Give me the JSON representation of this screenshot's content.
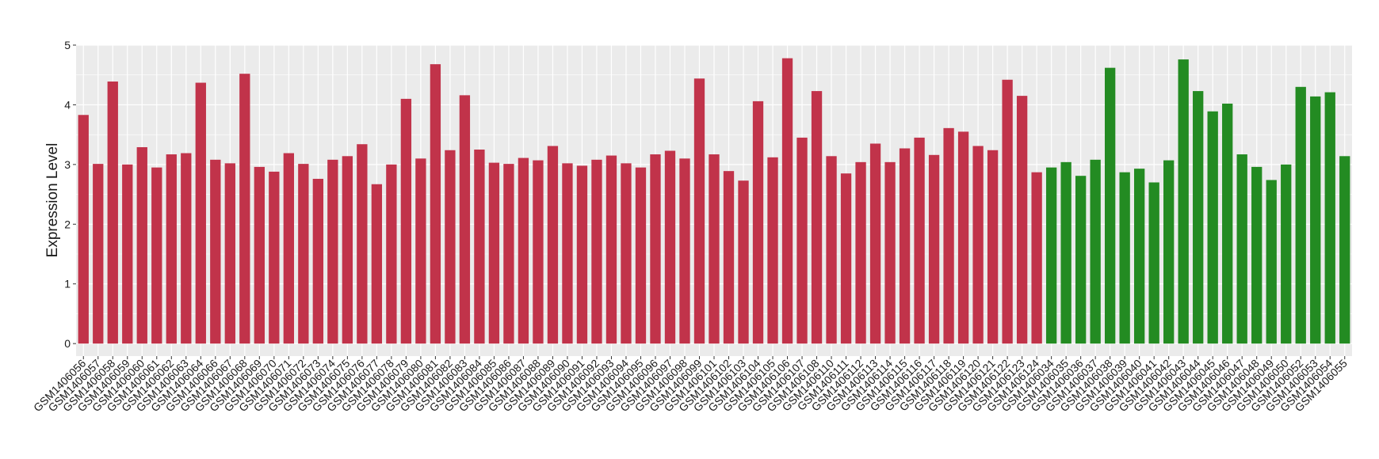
{
  "chart_data": {
    "type": "bar",
    "y_label": "Expression Level",
    "categories": [
      "GSM1406056",
      "GSM1406057",
      "GSM1406058",
      "GSM1406059",
      "GSM1406060",
      "GSM1406061",
      "GSM1406062",
      "GSM1406063",
      "GSM1406064",
      "GSM1406066",
      "GSM1406067",
      "GSM1406068",
      "GSM1406069",
      "GSM1406070",
      "GSM1406071",
      "GSM1406072",
      "GSM1406073",
      "GSM1406074",
      "GSM1406075",
      "GSM1406076",
      "GSM1406077",
      "GSM1406078",
      "GSM1406079",
      "GSM1406080",
      "GSM1406081",
      "GSM1406082",
      "GSM1406083",
      "GSM1406084",
      "GSM1406085",
      "GSM1406086",
      "GSM1406087",
      "GSM1406088",
      "GSM1406089",
      "GSM1406090",
      "GSM1406091",
      "GSM1406092",
      "GSM1406093",
      "GSM1406094",
      "GSM1406095",
      "GSM1406096",
      "GSM1406097",
      "GSM1406098",
      "GSM1406099",
      "GSM1406101",
      "GSM1406102",
      "GSM1406103",
      "GSM1406104",
      "GSM1406105",
      "GSM1406106",
      "GSM1406107",
      "GSM1406108",
      "GSM1406110",
      "GSM1406111",
      "GSM1406112",
      "GSM1406113",
      "GSM1406114",
      "GSM1406115",
      "GSM1406116",
      "GSM1406117",
      "GSM1406118",
      "GSM1406119",
      "GSM1406120",
      "GSM1406121",
      "GSM1406122",
      "GSM1406123",
      "GSM1406124",
      "GSM1406034",
      "GSM1406035",
      "GSM1406036",
      "GSM1406037",
      "GSM1406038",
      "GSM1406039",
      "GSM1406040",
      "GSM1406041",
      "GSM1406042",
      "GSM1406043",
      "GSM1406044",
      "GSM1406045",
      "GSM1406046",
      "GSM1406047",
      "GSM1406048",
      "GSM1406049",
      "GSM1406050",
      "GSM1406052",
      "GSM1406053",
      "GSM1406054",
      "GSM1406055"
    ],
    "values": [
      3.83,
      3.01,
      4.39,
      3.0,
      3.29,
      2.95,
      3.17,
      3.19,
      4.37,
      3.08,
      3.02,
      4.52,
      2.96,
      2.88,
      3.19,
      3.01,
      2.76,
      3.08,
      3.14,
      3.34,
      2.67,
      3.0,
      4.1,
      3.1,
      4.68,
      3.24,
      4.16,
      3.25,
      3.03,
      3.01,
      3.11,
      3.07,
      3.31,
      3.02,
      2.98,
      3.08,
      3.15,
      3.02,
      2.95,
      3.17,
      3.23,
      3.1,
      4.44,
      3.17,
      2.89,
      2.73,
      4.06,
      3.12,
      4.78,
      3.45,
      4.23,
      3.14,
      2.85,
      3.04,
      3.35,
      3.04,
      3.27,
      3.45,
      3.16,
      3.61,
      3.55,
      3.31,
      3.24,
      4.42,
      4.15,
      2.87,
      2.95,
      3.04,
      2.81,
      3.08,
      4.62,
      2.87,
      2.93,
      2.7,
      3.07,
      4.76,
      4.23,
      3.89,
      4.02,
      3.17,
      2.96,
      2.74,
      3.0,
      4.3,
      4.14,
      4.21,
      3.14
    ],
    "colors": [
      "#c1334a",
      "#c1334a",
      "#c1334a",
      "#c1334a",
      "#c1334a",
      "#c1334a",
      "#c1334a",
      "#c1334a",
      "#c1334a",
      "#c1334a",
      "#c1334a",
      "#c1334a",
      "#c1334a",
      "#c1334a",
      "#c1334a",
      "#c1334a",
      "#c1334a",
      "#c1334a",
      "#c1334a",
      "#c1334a",
      "#c1334a",
      "#c1334a",
      "#c1334a",
      "#c1334a",
      "#c1334a",
      "#c1334a",
      "#c1334a",
      "#c1334a",
      "#c1334a",
      "#c1334a",
      "#c1334a",
      "#c1334a",
      "#c1334a",
      "#c1334a",
      "#c1334a",
      "#c1334a",
      "#c1334a",
      "#c1334a",
      "#c1334a",
      "#c1334a",
      "#c1334a",
      "#c1334a",
      "#c1334a",
      "#c1334a",
      "#c1334a",
      "#c1334a",
      "#c1334a",
      "#c1334a",
      "#c1334a",
      "#c1334a",
      "#c1334a",
      "#c1334a",
      "#c1334a",
      "#c1334a",
      "#c1334a",
      "#c1334a",
      "#c1334a",
      "#c1334a",
      "#c1334a",
      "#c1334a",
      "#c1334a",
      "#c1334a",
      "#c1334a",
      "#c1334a",
      "#c1334a",
      "#c1334a",
      "#238b22",
      "#238b22",
      "#238b22",
      "#238b22",
      "#238b22",
      "#238b22",
      "#238b22",
      "#238b22",
      "#238b22",
      "#238b22",
      "#238b22",
      "#238b22",
      "#238b22",
      "#238b22",
      "#238b22",
      "#238b22",
      "#238b22",
      "#238b22",
      "#238b22",
      "#238b22",
      "#238b22"
    ],
    "ylim": [
      -0.21,
      5.0
    ],
    "yticks": [
      0,
      1,
      2,
      3,
      4,
      5
    ],
    "grid": true
  }
}
